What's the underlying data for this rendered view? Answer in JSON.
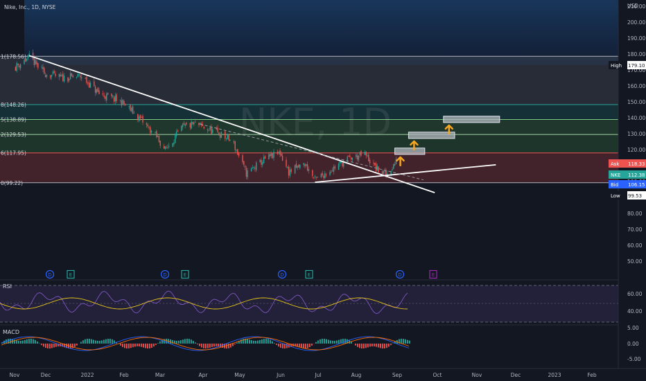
{
  "header": {
    "symbol_title": "Nike, Inc., 1D, NYSE",
    "currency": "USD",
    "watermark": "NKE, 1D"
  },
  "colors": {
    "background": "#131722",
    "up_candle": "#26a69a",
    "down_candle": "#ef5350",
    "trendline": "#ffffff",
    "arrow": "#f5a623",
    "target_box": "#b2b5be",
    "rsi_line": "#7e57c2",
    "rsi_ma": "#e6c619",
    "macd_line": "#2962ff",
    "signal_line": "#ff6d00"
  },
  "price_axis": {
    "ticks": [
      "210.00",
      "200.00",
      "190.00",
      "180.00",
      "170.00",
      "160.00",
      "150.00",
      "140.00",
      "130.00",
      "120.00",
      "110.00",
      "100.00",
      "90.00",
      "80.00",
      "70.00",
      "60.00",
      "50.00"
    ],
    "labels": [
      {
        "name": "High",
        "value": "179.10",
        "color": "#131722",
        "text_color": "#ffffff"
      },
      {
        "name": "Ask",
        "value": "118.33",
        "color": "#ef5350",
        "text_color": "#ffffff"
      },
      {
        "name": "NKE",
        "value": "112.38",
        "color": "#26a69a",
        "text_color": "#ffffff"
      },
      {
        "name": "Bid",
        "value": "106.15",
        "color": "#2962ff",
        "text_color": "#ffffff"
      },
      {
        "name": "Low",
        "value": "99.53",
        "color": "#131722",
        "text_color": "#ffffff"
      }
    ]
  },
  "fib_levels": [
    {
      "label": "1(178.56)",
      "price": 178.56,
      "color": "#b2b5be",
      "fill": "rgba(120,123,134,0.22)"
    },
    {
      "label": "8(148.26)",
      "price": 148.26,
      "color": "#26a69a",
      "fill": "rgba(38,166,154,0.18)"
    },
    {
      "label": "5(138.89)",
      "price": 138.89,
      "color": "#81c784",
      "fill": "rgba(76,175,80,0.22)"
    },
    {
      "label": "2(129.53)",
      "price": 129.53,
      "color": "#a5d6a7",
      "fill": "rgba(76,175,80,0.20)"
    },
    {
      "label": "6(117.95)",
      "price": 117.95,
      "color": "#ef5350",
      "fill": "rgba(239,83,80,0.22)"
    },
    {
      "label": "0(99.22)",
      "price": 99.22,
      "color": "#b2b5be",
      "fill": null
    }
  ],
  "time_axis": [
    "Nov",
    "Dec",
    "2022",
    "Feb",
    "Mar",
    "Apr",
    "May",
    "Jun",
    "Jul",
    "Aug",
    "Sep",
    "Oct",
    "Nov",
    "Dec",
    "2023",
    "Feb"
  ],
  "events": [
    {
      "label": "D",
      "type": "dividend"
    },
    {
      "label": "E",
      "type": "earnings"
    },
    {
      "label": "D",
      "type": "dividend"
    },
    {
      "label": "E",
      "type": "earnings"
    },
    {
      "label": "D",
      "type": "dividend"
    },
    {
      "label": "E",
      "type": "earnings"
    },
    {
      "label": "D",
      "type": "dividend"
    },
    {
      "label": "E",
      "type": "earnings-upcoming"
    }
  ],
  "rsi": {
    "label": "RSI",
    "ticks": [
      "60.00",
      "40.00"
    ]
  },
  "macd": {
    "label": "MACD",
    "ticks": [
      "5.00",
      "0.00",
      "-5.00"
    ]
  },
  "chart_data": {
    "type": "candlestick",
    "title": "Nike, Inc., 1D, NYSE",
    "unit": "USD",
    "ylim": [
      48,
      218
    ],
    "log_scale": false,
    "approx_path": [
      {
        "date": "2021-11-08",
        "price": 172
      },
      {
        "date": "2021-11-19",
        "price": 178
      },
      {
        "date": "2021-12-01",
        "price": 168
      },
      {
        "date": "2021-12-15",
        "price": 165
      },
      {
        "date": "2021-12-31",
        "price": 166
      },
      {
        "date": "2022-01-14",
        "price": 155
      },
      {
        "date": "2022-02-01",
        "price": 150
      },
      {
        "date": "2022-02-15",
        "price": 140
      },
      {
        "date": "2022-03-01",
        "price": 128
      },
      {
        "date": "2022-03-08",
        "price": 120
      },
      {
        "date": "2022-03-22",
        "price": 134
      },
      {
        "date": "2022-04-01",
        "price": 136
      },
      {
        "date": "2022-04-20",
        "price": 130
      },
      {
        "date": "2022-05-01",
        "price": 125
      },
      {
        "date": "2022-05-12",
        "price": 105
      },
      {
        "date": "2022-05-27",
        "price": 114
      },
      {
        "date": "2022-06-08",
        "price": 118
      },
      {
        "date": "2022-06-15",
        "price": 106
      },
      {
        "date": "2022-06-28",
        "price": 111
      },
      {
        "date": "2022-07-06",
        "price": 101
      },
      {
        "date": "2022-07-20",
        "price": 108
      },
      {
        "date": "2022-08-01",
        "price": 114
      },
      {
        "date": "2022-08-15",
        "price": 117
      },
      {
        "date": "2022-08-24",
        "price": 108
      },
      {
        "date": "2022-09-01",
        "price": 104
      },
      {
        "date": "2022-09-09",
        "price": 112.38
      }
    ],
    "trendlines": [
      {
        "name": "descending trendline",
        "from": {
          "date": "2021-11-19",
          "price": 179
        },
        "to": {
          "date": "2022-10-10",
          "price": 93
        }
      },
      {
        "name": "ascending support",
        "from": {
          "date": "2022-07-06",
          "price": 99.5
        },
        "to": {
          "date": "2022-11-28",
          "price": 110.5
        }
      }
    ],
    "targets": [
      {
        "from": "2022-09-08",
        "to": "2022-10-02",
        "low": 117,
        "high": 121
      },
      {
        "from": "2022-09-19",
        "to": "2022-10-26",
        "low": 127,
        "high": 131
      },
      {
        "from": "2022-10-17",
        "to": "2022-12-01",
        "low": 137,
        "high": 141
      }
    ]
  }
}
